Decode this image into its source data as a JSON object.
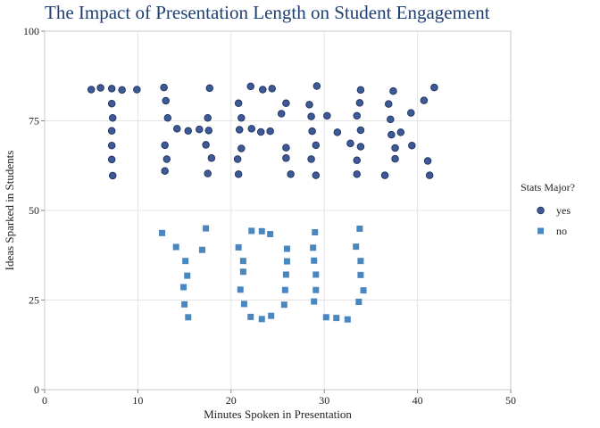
{
  "chart_data": {
    "type": "scatter",
    "title": "The Impact of Presentation Length on Student Engagement",
    "xlabel": "Minutes Spoken in Presentation",
    "ylabel": "Ideas Sparked in Students",
    "xlim": [
      0,
      50
    ],
    "ylim": [
      0,
      100
    ],
    "xticks": [
      0,
      10,
      20,
      30,
      40,
      50
    ],
    "yticks": [
      0,
      25,
      50,
      75,
      100
    ],
    "grid": true,
    "legend": {
      "title": "Stats Major?",
      "placement": "right"
    },
    "series": [
      {
        "name": "yes",
        "marker": "circle",
        "color": "#3d5a96",
        "points": [
          [
            5.0,
            83.7
          ],
          [
            6.0,
            84.2
          ],
          [
            7.2,
            84.0
          ],
          [
            8.3,
            83.6
          ],
          [
            9.9,
            83.7
          ],
          [
            7.2,
            79.8
          ],
          [
            7.3,
            75.8
          ],
          [
            7.2,
            72.2
          ],
          [
            7.2,
            68.1
          ],
          [
            7.2,
            64.2
          ],
          [
            7.3,
            59.7
          ],
          [
            12.8,
            84.3
          ],
          [
            13.0,
            80.6
          ],
          [
            13.2,
            75.8
          ],
          [
            14.2,
            72.8
          ],
          [
            15.4,
            72.2
          ],
          [
            16.6,
            72.6
          ],
          [
            12.9,
            68.2
          ],
          [
            13.1,
            64.3
          ],
          [
            12.9,
            61.0
          ],
          [
            17.7,
            84.1
          ],
          [
            17.5,
            75.8
          ],
          [
            17.6,
            72.3
          ],
          [
            17.3,
            68.3
          ],
          [
            17.9,
            64.6
          ],
          [
            17.5,
            60.3
          ],
          [
            20.8,
            79.9
          ],
          [
            21.1,
            75.8
          ],
          [
            20.9,
            72.5
          ],
          [
            22.2,
            72.8
          ],
          [
            23.2,
            71.9
          ],
          [
            24.2,
            72.1
          ],
          [
            21.1,
            67.3
          ],
          [
            20.7,
            64.3
          ],
          [
            20.8,
            60.1
          ],
          [
            22.1,
            84.6
          ],
          [
            23.4,
            83.7
          ],
          [
            24.4,
            84.0
          ],
          [
            25.4,
            77.0
          ],
          [
            25.9,
            79.9
          ],
          [
            25.9,
            67.5
          ],
          [
            25.9,
            64.6
          ],
          [
            26.4,
            60.1
          ],
          [
            28.4,
            79.5
          ],
          [
            28.6,
            76.2
          ],
          [
            28.7,
            72.1
          ],
          [
            29.1,
            68.2
          ],
          [
            28.6,
            64.3
          ],
          [
            29.1,
            59.8
          ],
          [
            29.2,
            84.7
          ],
          [
            30.3,
            76.4
          ],
          [
            31.4,
            71.8
          ],
          [
            32.8,
            68.7
          ],
          [
            33.9,
            83.6
          ],
          [
            33.8,
            80.0
          ],
          [
            33.5,
            76.4
          ],
          [
            33.9,
            72.4
          ],
          [
            33.9,
            67.8
          ],
          [
            33.5,
            64.0
          ],
          [
            33.5,
            60.1
          ],
          [
            36.5,
            59.8
          ],
          [
            37.6,
            64.4
          ],
          [
            37.6,
            67.4
          ],
          [
            37.2,
            71.1
          ],
          [
            38.2,
            71.8
          ],
          [
            37.1,
            75.4
          ],
          [
            36.9,
            79.7
          ],
          [
            37.4,
            83.3
          ],
          [
            39.3,
            77.2
          ],
          [
            39.4,
            68.1
          ],
          [
            40.7,
            80.7
          ],
          [
            41.1,
            63.8
          ],
          [
            41.3,
            59.8
          ],
          [
            41.8,
            84.3
          ]
        ]
      },
      {
        "name": "no",
        "marker": "square",
        "color": "#4a86bf",
        "points": [
          [
            12.6,
            43.7
          ],
          [
            14.1,
            39.8
          ],
          [
            15.1,
            35.9
          ],
          [
            15.3,
            31.8
          ],
          [
            14.9,
            28.6
          ],
          [
            15.0,
            23.8
          ],
          [
            15.4,
            20.2
          ],
          [
            17.3,
            45.0
          ],
          [
            16.9,
            39.0
          ],
          [
            20.8,
            39.7
          ],
          [
            21.3,
            35.9
          ],
          [
            21.3,
            32.9
          ],
          [
            21.0,
            27.9
          ],
          [
            21.4,
            23.9
          ],
          [
            22.1,
            20.3
          ],
          [
            23.3,
            19.7
          ],
          [
            24.3,
            20.6
          ],
          [
            22.2,
            44.3
          ],
          [
            23.3,
            44.2
          ],
          [
            24.2,
            43.4
          ],
          [
            26.0,
            39.3
          ],
          [
            26.0,
            35.8
          ],
          [
            25.9,
            32.1
          ],
          [
            25.8,
            27.8
          ],
          [
            25.7,
            23.7
          ],
          [
            29.0,
            43.9
          ],
          [
            28.8,
            39.6
          ],
          [
            28.9,
            36.0
          ],
          [
            29.1,
            32.1
          ],
          [
            29.1,
            27.8
          ],
          [
            28.9,
            24.6
          ],
          [
            30.2,
            20.2
          ],
          [
            31.3,
            20.0
          ],
          [
            32.5,
            19.6
          ],
          [
            33.8,
            44.9
          ],
          [
            33.4,
            39.9
          ],
          [
            33.9,
            35.9
          ],
          [
            33.9,
            32.0
          ],
          [
            34.2,
            27.7
          ],
          [
            33.7,
            24.5
          ]
        ]
      }
    ]
  }
}
